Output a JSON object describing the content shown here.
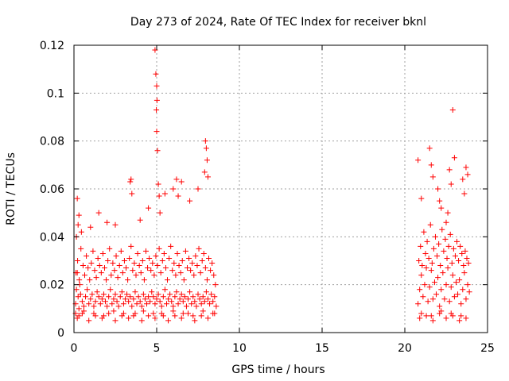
{
  "chart_data": {
    "type": "scatter",
    "title": "Day 273 of 2024, Rate Of TEC Index for receiver bknl",
    "xlabel": "GPS time / hours",
    "ylabel": "ROTI / TECUs",
    "xlim": [
      0,
      25
    ],
    "ylim": [
      0,
      0.12
    ],
    "x_ticks": [
      0,
      5,
      10,
      15,
      20,
      25
    ],
    "x_tick_labels": [
      "0",
      "5",
      "10",
      "15",
      "20",
      "25"
    ],
    "y_ticks": [
      0,
      0.02,
      0.04,
      0.06,
      0.08,
      0.1,
      0.12
    ],
    "y_tick_labels": [
      "0",
      "0.02",
      "0.04",
      "0.06",
      "0.08",
      "0.1",
      "0.12"
    ],
    "grid": true,
    "marker": "plus",
    "color": "#ff0000",
    "series": [
      {
        "x": [
          0.1,
          0.15,
          0.2,
          0.25,
          0.3,
          0.35,
          0.4,
          0.5,
          0.6,
          0.7,
          0.8,
          0.9,
          1.0,
          1.1,
          1.2,
          1.3,
          1.4,
          1.5,
          1.6,
          1.7,
          1.8,
          1.9,
          2.0,
          2.1,
          2.2,
          2.3,
          2.4,
          2.5,
          2.6,
          2.7,
          2.8,
          2.9,
          3.0,
          3.1,
          3.2,
          3.3,
          3.4,
          3.5,
          3.6,
          3.7,
          3.8,
          3.9,
          4.0,
          4.1,
          4.2,
          4.3,
          4.4,
          4.5,
          4.6,
          4.7,
          4.8,
          4.9,
          5.0,
          5.1,
          5.2,
          5.3,
          5.4,
          5.5,
          5.6,
          5.7,
          5.8,
          5.9,
          6.0,
          6.1,
          6.2,
          6.3,
          6.4,
          6.5,
          6.6,
          6.7,
          6.8,
          6.9,
          7.0,
          7.1,
          7.2,
          7.3,
          7.4,
          7.5,
          7.6,
          7.7,
          7.8,
          7.9,
          8.0,
          8.1,
          8.2,
          8.3,
          8.4,
          8.5,
          8.6,
          0.12,
          0.22,
          0.32,
          0.42,
          0.55,
          0.65,
          0.75,
          0.85,
          0.95,
          1.05,
          1.15,
          1.25,
          1.35,
          1.45,
          1.55,
          1.65,
          1.75,
          1.85,
          1.95,
          2.05,
          2.15,
          2.25,
          2.35,
          2.45,
          2.55,
          2.65,
          2.75,
          2.85,
          2.95,
          3.05,
          3.15,
          3.25,
          3.35,
          3.45,
          3.55,
          3.65,
          3.75,
          3.85,
          3.95,
          4.05,
          4.15,
          4.25,
          4.35,
          4.45,
          4.55,
          4.65,
          4.75,
          4.85,
          4.95,
          5.05,
          5.15,
          5.25,
          5.35,
          5.45,
          5.55,
          5.65,
          5.75,
          5.85,
          5.95,
          6.05,
          6.15,
          6.25,
          6.35,
          6.45,
          6.55,
          6.65,
          6.75,
          6.85,
          6.95,
          7.05,
          7.15,
          7.25,
          7.35,
          7.45,
          7.55,
          7.65,
          7.75,
          7.85,
          7.95,
          8.05,
          8.15,
          8.25,
          8.35,
          8.45,
          8.55,
          0.2,
          0.25,
          0.3,
          0.15,
          0.45,
          1.0,
          1.5,
          2.0,
          2.5,
          3.4,
          3.45,
          3.5,
          4.0,
          4.5,
          4.9,
          4.95,
          5.0,
          5.02,
          4.98,
          5.0,
          5.05,
          5.1,
          5.15,
          5.2,
          5.5,
          6.0,
          6.2,
          6.3,
          6.5,
          7.0,
          7.5,
          7.9,
          7.95,
          8.0,
          8.05,
          8.1,
          20.8,
          20.9,
          21.0,
          21.1,
          21.2,
          21.3,
          21.4,
          21.5,
          21.6,
          21.7,
          21.8,
          21.9,
          22.0,
          22.1,
          22.2,
          22.3,
          22.4,
          22.5,
          22.6,
          22.7,
          22.8,
          22.9,
          23.0,
          23.1,
          23.2,
          23.3,
          23.4,
          23.5,
          23.6,
          23.7,
          23.8,
          23.9,
          20.85,
          20.95,
          21.05,
          21.15,
          21.25,
          21.35,
          21.45,
          21.55,
          21.65,
          21.75,
          21.85,
          21.95,
          22.05,
          22.15,
          22.25,
          22.35,
          22.45,
          22.55,
          22.65,
          22.75,
          22.85,
          22.95,
          23.05,
          23.15,
          23.25,
          23.35,
          23.45,
          23.55,
          23.65,
          23.75,
          23.85,
          20.8,
          21.0,
          21.5,
          21.6,
          21.7,
          22.0,
          22.1,
          22.2,
          22.5,
          22.6,
          22.7,
          22.8,
          22.9,
          23.0,
          23.5,
          23.6,
          23.7,
          23.8,
          0.1,
          0.3,
          0.6,
          1.2,
          1.8,
          2.4,
          3.0,
          3.6,
          4.2,
          4.8,
          5.4,
          6.0,
          6.6,
          7.2,
          7.8,
          8.4,
          21.0,
          21.6,
          22.2,
          22.8,
          23.4,
          0.2,
          0.5,
          0.9,
          1.3,
          1.7,
          2.1,
          2.5,
          2.9,
          3.3,
          3.7,
          4.1,
          4.5,
          4.9,
          5.3,
          5.7,
          6.1,
          6.5,
          6.9,
          7.3,
          7.7,
          8.1,
          8.5,
          20.9,
          21.3,
          21.7,
          22.1,
          22.5,
          22.9,
          23.3,
          23.7
        ],
        "y": [
          0.012,
          0.018,
          0.025,
          0.015,
          0.01,
          0.02,
          0.016,
          0.013,
          0.011,
          0.015,
          0.018,
          0.012,
          0.014,
          0.016,
          0.011,
          0.013,
          0.017,
          0.015,
          0.012,
          0.014,
          0.016,
          0.013,
          0.011,
          0.015,
          0.018,
          0.012,
          0.014,
          0.016,
          0.013,
          0.011,
          0.015,
          0.017,
          0.012,
          0.014,
          0.016,
          0.013,
          0.015,
          0.011,
          0.014,
          0.017,
          0.012,
          0.015,
          0.013,
          0.011,
          0.016,
          0.014,
          0.012,
          0.015,
          0.013,
          0.017,
          0.015,
          0.012,
          0.014,
          0.016,
          0.013,
          0.011,
          0.015,
          0.018,
          0.012,
          0.014,
          0.016,
          0.013,
          0.011,
          0.015,
          0.017,
          0.012,
          0.014,
          0.016,
          0.013,
          0.015,
          0.011,
          0.014,
          0.017,
          0.012,
          0.015,
          0.013,
          0.011,
          0.016,
          0.014,
          0.012,
          0.015,
          0.013,
          0.017,
          0.014,
          0.012,
          0.016,
          0.013,
          0.015,
          0.011,
          0.025,
          0.03,
          0.022,
          0.035,
          0.028,
          0.024,
          0.032,
          0.027,
          0.022,
          0.029,
          0.034,
          0.026,
          0.023,
          0.031,
          0.028,
          0.025,
          0.033,
          0.027,
          0.022,
          0.03,
          0.035,
          0.024,
          0.029,
          0.026,
          0.032,
          0.023,
          0.028,
          0.034,
          0.025,
          0.03,
          0.027,
          0.022,
          0.031,
          0.036,
          0.026,
          0.029,
          0.024,
          0.033,
          0.028,
          0.025,
          0.03,
          0.022,
          0.034,
          0.027,
          0.031,
          0.026,
          0.029,
          0.024,
          0.032,
          0.028,
          0.035,
          0.025,
          0.03,
          0.033,
          0.027,
          0.022,
          0.031,
          0.036,
          0.026,
          0.029,
          0.024,
          0.033,
          0.028,
          0.025,
          0.03,
          0.022,
          0.034,
          0.027,
          0.031,
          0.026,
          0.029,
          0.024,
          0.032,
          0.028,
          0.035,
          0.025,
          0.03,
          0.033,
          0.027,
          0.022,
          0.031,
          0.026,
          0.029,
          0.024,
          0.02,
          0.056,
          0.045,
          0.049,
          0.04,
          0.042,
          0.044,
          0.05,
          0.046,
          0.045,
          0.063,
          0.064,
          0.058,
          0.047,
          0.052,
          0.118,
          0.108,
          0.103,
          0.097,
          0.093,
          0.084,
          0.076,
          0.062,
          0.057,
          0.05,
          0.058,
          0.06,
          0.064,
          0.057,
          0.063,
          0.055,
          0.06,
          0.067,
          0.08,
          0.077,
          0.072,
          0.065,
          0.012,
          0.018,
          0.024,
          0.015,
          0.02,
          0.027,
          0.013,
          0.019,
          0.026,
          0.014,
          0.021,
          0.016,
          0.023,
          0.011,
          0.018,
          0.025,
          0.014,
          0.02,
          0.027,
          0.013,
          0.019,
          0.024,
          0.015,
          0.021,
          0.016,
          0.022,
          0.012,
          0.018,
          0.025,
          0.014,
          0.02,
          0.017,
          0.03,
          0.036,
          0.028,
          0.042,
          0.033,
          0.038,
          0.031,
          0.045,
          0.029,
          0.035,
          0.04,
          0.032,
          0.037,
          0.028,
          0.043,
          0.034,
          0.039,
          0.031,
          0.036,
          0.041,
          0.029,
          0.035,
          0.032,
          0.038,
          0.03,
          0.036,
          0.033,
          0.028,
          0.034,
          0.031,
          0.029,
          0.072,
          0.056,
          0.077,
          0.07,
          0.065,
          0.06,
          0.055,
          0.052,
          0.046,
          0.05,
          0.068,
          0.062,
          0.093,
          0.073,
          0.064,
          0.058,
          0.069,
          0.066,
          0.008,
          0.007,
          0.009,
          0.008,
          0.007,
          0.009,
          0.008,
          0.007,
          0.009,
          0.008,
          0.007,
          0.009,
          0.008,
          0.007,
          0.009,
          0.008,
          0.008,
          0.007,
          0.009,
          0.008,
          0.007,
          0.006,
          0.008,
          0.005,
          0.007,
          0.006,
          0.008,
          0.005,
          0.007,
          0.006,
          0.008,
          0.005,
          0.007,
          0.006,
          0.008,
          0.005,
          0.007,
          0.006,
          0.008,
          0.005,
          0.007,
          0.006,
          0.008,
          0.006,
          0.007,
          0.005,
          0.008,
          0.006,
          0.007,
          0.005,
          0.006
        ]
      }
    ]
  }
}
